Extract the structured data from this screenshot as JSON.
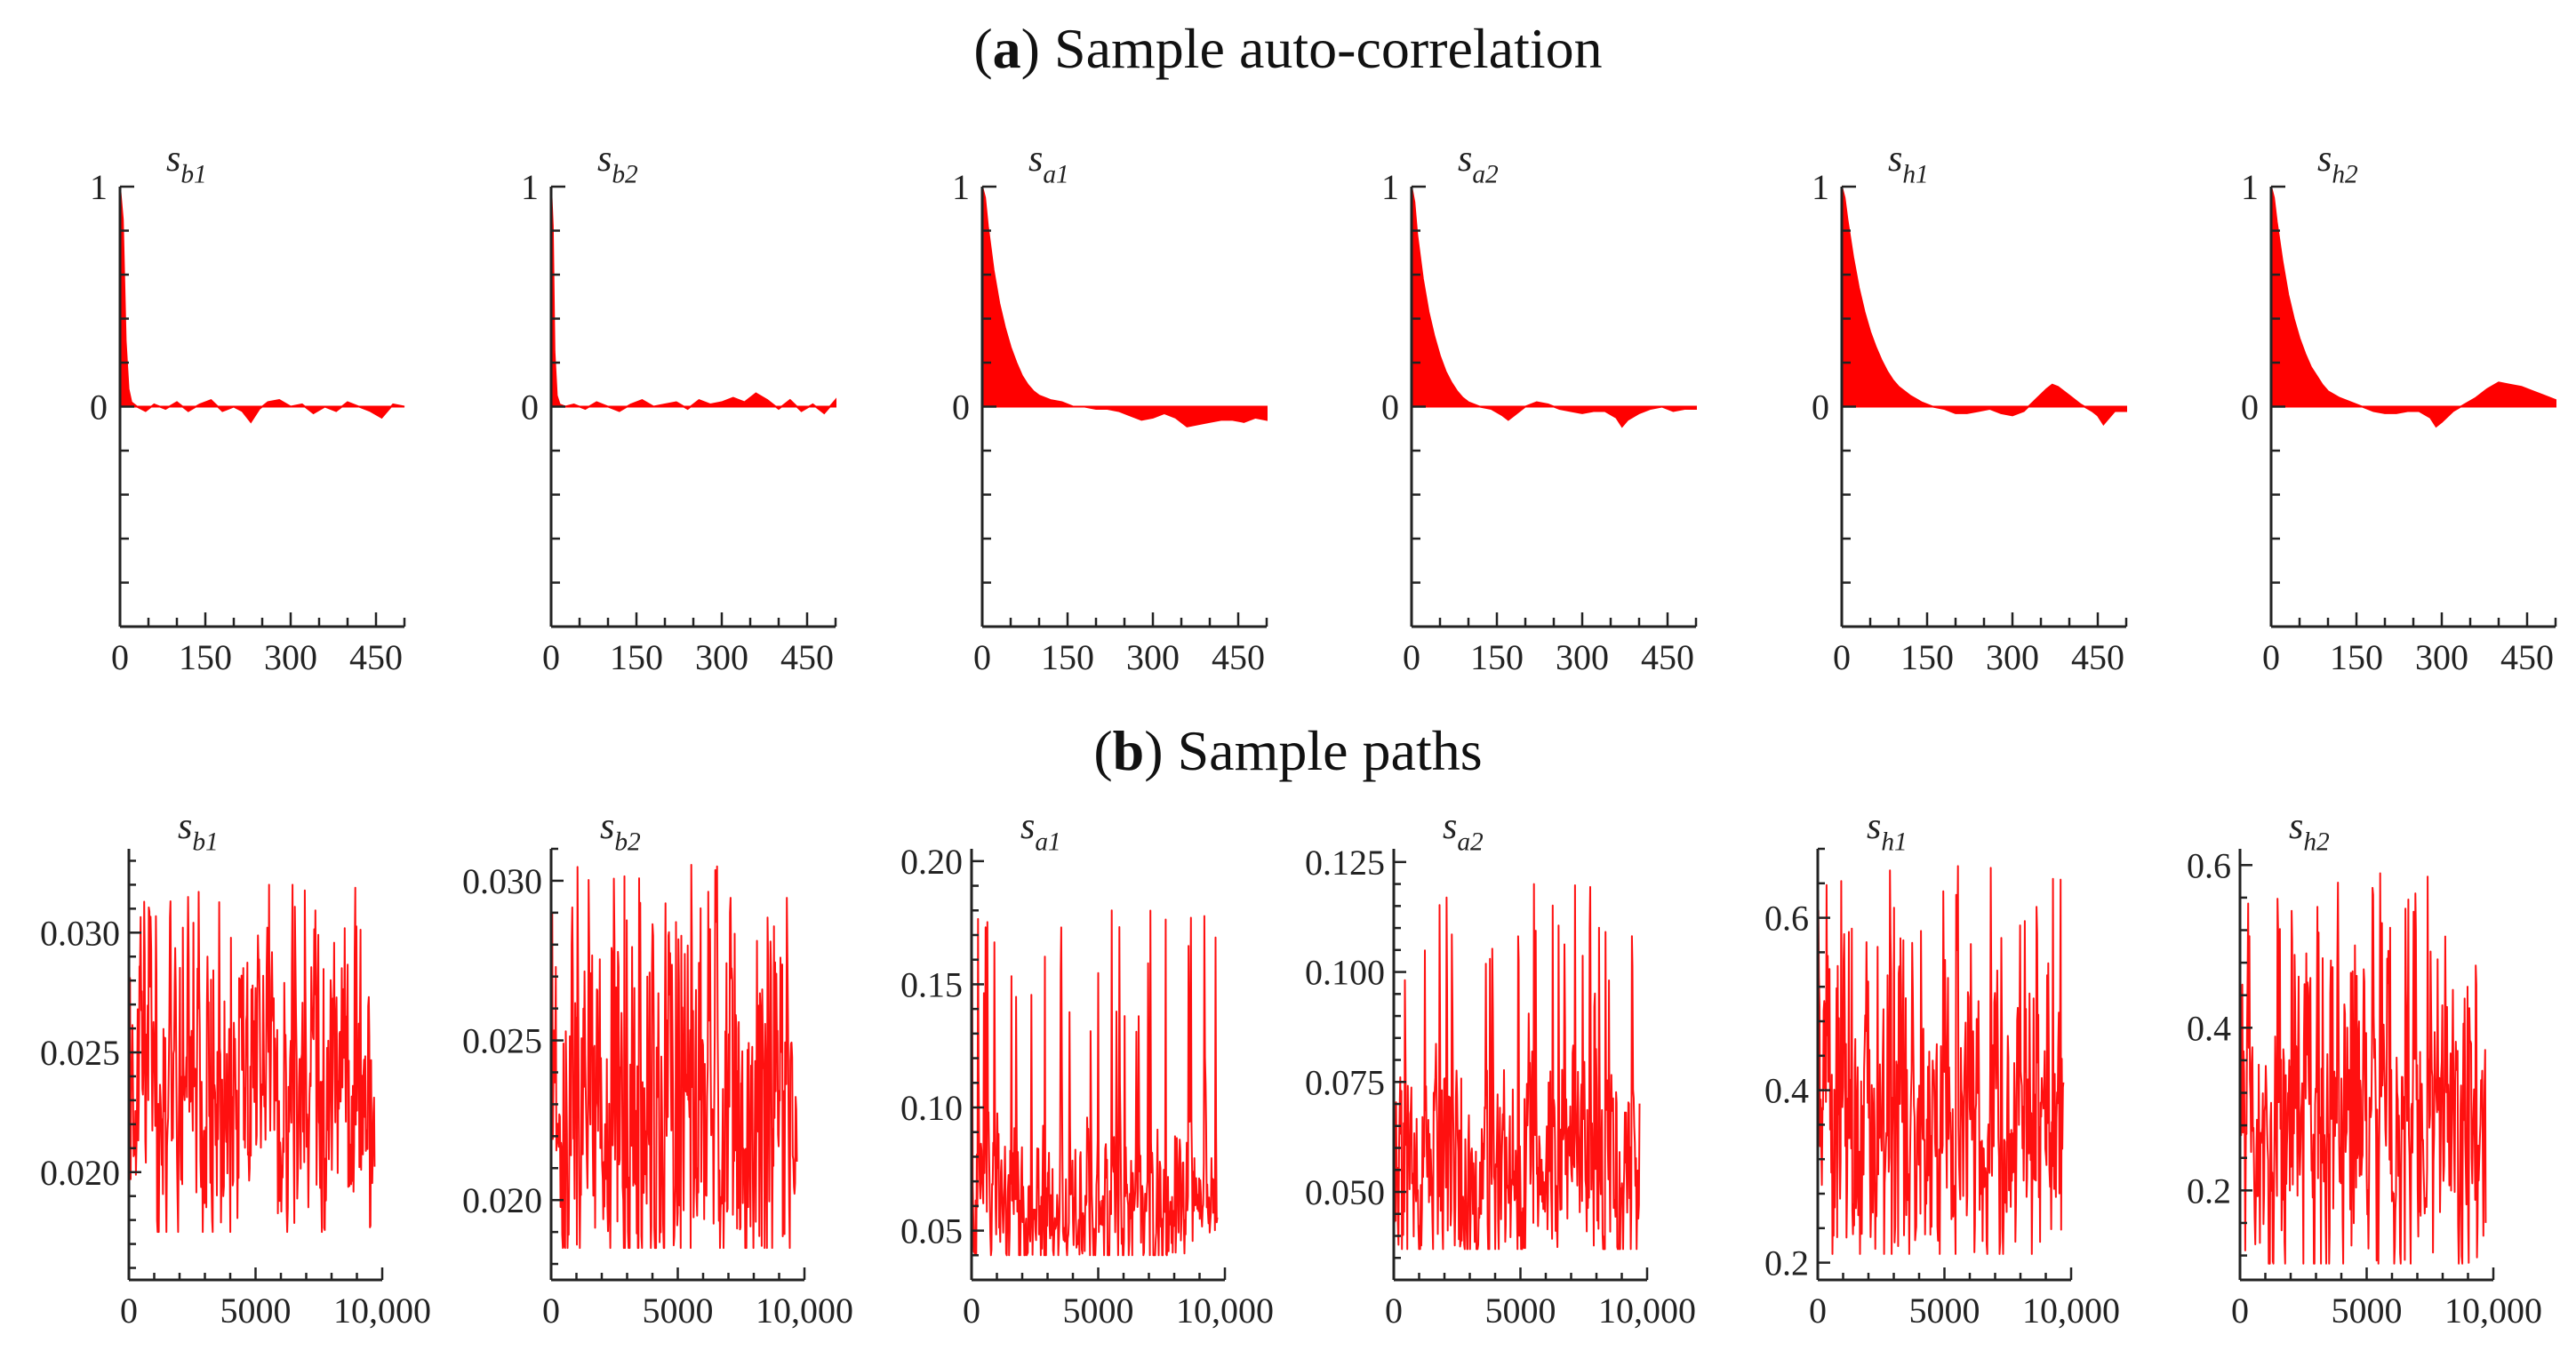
{
  "titles": {
    "a": {
      "letter": "a",
      "text": "Sample auto-correlation"
    },
    "b": {
      "letter": "b",
      "text": "Sample paths"
    }
  },
  "colors": {
    "series": "#ff0000",
    "axis": "#222222"
  },
  "chart_data": [
    {
      "type": "area",
      "group": "a",
      "label_base": "s",
      "label_sub": "b1",
      "xlim": [
        0,
        500
      ],
      "ylim": [
        -1,
        1
      ],
      "xticks": [
        0,
        150,
        300,
        450
      ],
      "ytick_labels": [
        {
          "v": 1,
          "t": "1"
        },
        {
          "v": 0,
          "t": "0"
        }
      ],
      "x": [
        0,
        5,
        10,
        15,
        20,
        30,
        45,
        60,
        80,
        100,
        120,
        140,
        160,
        180,
        200,
        215,
        230,
        245,
        260,
        280,
        300,
        320,
        340,
        360,
        380,
        400,
        420,
        440,
        460,
        480,
        500
      ],
      "y": [
        1.0,
        0.85,
        0.3,
        0.08,
        0.02,
        0.0,
        -0.02,
        0.01,
        -0.01,
        0.02,
        -0.02,
        0.01,
        0.03,
        -0.02,
        0.0,
        -0.02,
        -0.07,
        -0.01,
        0.02,
        0.03,
        0.0,
        0.01,
        -0.03,
        0.0,
        -0.02,
        0.02,
        0.0,
        -0.02,
        -0.05,
        0.01,
        0.0
      ]
    },
    {
      "type": "area",
      "group": "a",
      "label_base": "s",
      "label_sub": "b2",
      "xlim": [
        0,
        500
      ],
      "ylim": [
        -1,
        1
      ],
      "xticks": [
        0,
        150,
        300,
        450
      ],
      "ytick_labels": [
        {
          "v": 1,
          "t": "1"
        },
        {
          "v": 0,
          "t": "0"
        }
      ],
      "x": [
        0,
        3,
        6,
        10,
        15,
        25,
        40,
        60,
        80,
        100,
        120,
        140,
        160,
        180,
        200,
        220,
        240,
        260,
        280,
        300,
        320,
        340,
        360,
        380,
        400,
        420,
        440,
        460,
        480,
        500
      ],
      "y": [
        1.0,
        0.82,
        0.25,
        0.05,
        0.01,
        0.0,
        0.01,
        -0.01,
        0.02,
        0.0,
        -0.02,
        0.01,
        0.03,
        0.0,
        0.01,
        0.02,
        -0.01,
        0.03,
        0.01,
        0.02,
        0.04,
        0.02,
        0.06,
        0.03,
        -0.01,
        0.03,
        -0.02,
        0.01,
        -0.03,
        0.03
      ]
    },
    {
      "type": "area",
      "group": "a",
      "label_base": "s",
      "label_sub": "a1",
      "xlim": [
        0,
        500
      ],
      "ylim": [
        -1,
        1
      ],
      "xticks": [
        0,
        150,
        300,
        450
      ],
      "ytick_labels": [
        {
          "v": 1,
          "t": "1"
        },
        {
          "v": 0,
          "t": "0"
        }
      ],
      "x": [
        0,
        5,
        10,
        20,
        30,
        40,
        50,
        60,
        70,
        80,
        90,
        100,
        120,
        140,
        160,
        180,
        200,
        220,
        240,
        260,
        280,
        300,
        320,
        340,
        360,
        380,
        400,
        420,
        440,
        460,
        480,
        500
      ],
      "y": [
        1.0,
        0.95,
        0.82,
        0.62,
        0.47,
        0.36,
        0.27,
        0.2,
        0.14,
        0.1,
        0.07,
        0.05,
        0.03,
        0.02,
        0.0,
        0.0,
        -0.01,
        -0.01,
        -0.02,
        -0.04,
        -0.06,
        -0.05,
        -0.03,
        -0.05,
        -0.09,
        -0.08,
        -0.07,
        -0.06,
        -0.06,
        -0.07,
        -0.05,
        -0.06
      ]
    },
    {
      "type": "area",
      "group": "a",
      "label_base": "s",
      "label_sub": "a2",
      "xlim": [
        0,
        500
      ],
      "ylim": [
        -1,
        1
      ],
      "xticks": [
        0,
        150,
        300,
        450
      ],
      "ytick_labels": [
        {
          "v": 1,
          "t": "1"
        },
        {
          "v": 0,
          "t": "0"
        }
      ],
      "x": [
        0,
        5,
        10,
        20,
        30,
        40,
        50,
        60,
        70,
        80,
        90,
        100,
        120,
        140,
        160,
        170,
        180,
        200,
        220,
        240,
        260,
        280,
        300,
        320,
        340,
        360,
        370,
        380,
        400,
        420,
        440,
        460,
        480,
        500
      ],
      "y": [
        1.0,
        0.93,
        0.78,
        0.58,
        0.43,
        0.32,
        0.23,
        0.16,
        0.11,
        0.07,
        0.04,
        0.02,
        0.0,
        -0.01,
        -0.04,
        -0.06,
        -0.04,
        0.0,
        0.02,
        0.01,
        -0.01,
        -0.02,
        -0.03,
        -0.02,
        -0.02,
        -0.05,
        -0.09,
        -0.06,
        -0.03,
        -0.01,
        0.0,
        -0.02,
        -0.01,
        -0.01
      ]
    },
    {
      "type": "area",
      "group": "a",
      "label_base": "s",
      "label_sub": "h1",
      "xlim": [
        0,
        500
      ],
      "ylim": [
        -1,
        1
      ],
      "xticks": [
        0,
        150,
        300,
        450
      ],
      "ytick_labels": [
        {
          "v": 1,
          "t": "1"
        },
        {
          "v": 0,
          "t": "0"
        }
      ],
      "x": [
        0,
        5,
        10,
        20,
        30,
        40,
        50,
        60,
        70,
        80,
        90,
        100,
        120,
        140,
        160,
        180,
        200,
        220,
        240,
        260,
        280,
        300,
        320,
        340,
        360,
        370,
        380,
        400,
        420,
        440,
        450,
        460,
        470,
        480,
        500
      ],
      "y": [
        1.0,
        0.95,
        0.85,
        0.68,
        0.54,
        0.43,
        0.34,
        0.27,
        0.21,
        0.16,
        0.12,
        0.09,
        0.05,
        0.02,
        0.0,
        -0.01,
        -0.03,
        -0.03,
        -0.02,
        -0.01,
        -0.03,
        -0.04,
        -0.02,
        0.03,
        0.08,
        0.1,
        0.09,
        0.05,
        0.01,
        -0.02,
        -0.04,
        -0.08,
        -0.05,
        -0.02,
        -0.02
      ]
    },
    {
      "type": "area",
      "group": "a",
      "label_base": "s",
      "label_sub": "h2",
      "xlim": [
        0,
        500
      ],
      "ylim": [
        -1,
        1
      ],
      "xticks": [
        0,
        150,
        300,
        450
      ],
      "ytick_labels": [
        {
          "v": 1,
          "t": "1"
        },
        {
          "v": 0,
          "t": "0"
        }
      ],
      "x": [
        0,
        5,
        10,
        20,
        30,
        40,
        50,
        60,
        70,
        80,
        90,
        100,
        120,
        140,
        160,
        180,
        200,
        220,
        240,
        260,
        280,
        290,
        300,
        320,
        340,
        360,
        380,
        400,
        420,
        440,
        460,
        480,
        500
      ],
      "y": [
        1.0,
        0.95,
        0.84,
        0.66,
        0.51,
        0.4,
        0.31,
        0.24,
        0.18,
        0.14,
        0.1,
        0.07,
        0.04,
        0.02,
        0.0,
        -0.02,
        -0.03,
        -0.03,
        -0.02,
        -0.02,
        -0.05,
        -0.09,
        -0.07,
        -0.02,
        0.01,
        0.04,
        0.08,
        0.11,
        0.1,
        0.09,
        0.07,
        0.05,
        0.03
      ]
    },
    {
      "type": "line",
      "group": "b",
      "label_base": "s",
      "label_sub": "b1",
      "xlim": [
        0,
        10000
      ],
      "ylim": [
        0.0155,
        0.0335
      ],
      "xticks": [
        0,
        5000,
        10000
      ],
      "xtick_labels": [
        "0",
        "5000",
        "10,000"
      ],
      "yticks": [
        0.02,
        0.025,
        0.03
      ],
      "ytick_labels": [
        "0.020",
        "0.025",
        "0.030"
      ],
      "y_min": 0.0175,
      "y_max": 0.032,
      "y_center": 0.0235,
      "y_spread": 0.0018
    },
    {
      "type": "line",
      "group": "b",
      "label_base": "s",
      "label_sub": "b2",
      "xlim": [
        0,
        10000
      ],
      "ylim": [
        0.0175,
        0.031
      ],
      "xticks": [
        0,
        5000,
        10000
      ],
      "xtick_labels": [
        "0",
        "5000",
        "10,000"
      ],
      "yticks": [
        0.02,
        0.025,
        0.03
      ],
      "ytick_labels": [
        "0.020",
        "0.025",
        "0.030"
      ],
      "y_min": 0.0185,
      "y_max": 0.0305,
      "y_center": 0.0225,
      "y_spread": 0.0018
    },
    {
      "type": "line",
      "group": "b",
      "label_base": "s",
      "label_sub": "a1",
      "xlim": [
        0,
        10000
      ],
      "ylim": [
        0.03,
        0.205
      ],
      "xticks": [
        0,
        5000,
        10000
      ],
      "xtick_labels": [
        "0",
        "5000",
        "10,000"
      ],
      "yticks": [
        0.05,
        0.1,
        0.15,
        0.2
      ],
      "ytick_labels": [
        "0.05",
        "0.10",
        "0.15",
        "0.20"
      ],
      "y_min": 0.04,
      "y_max": 0.18,
      "y_center": 0.06,
      "y_spread": 0.009
    },
    {
      "type": "line",
      "group": "b",
      "label_base": "s",
      "label_sub": "a2",
      "xlim": [
        0,
        10000
      ],
      "ylim": [
        0.03,
        0.128
      ],
      "xticks": [
        0,
        5000,
        10000
      ],
      "xtick_labels": [
        "0",
        "5000",
        "10,000"
      ],
      "yticks": [
        0.05,
        0.075,
        0.1,
        0.125
      ],
      "ytick_labels": [
        "0.050",
        "0.075",
        "0.100",
        "0.125"
      ],
      "y_min": 0.037,
      "y_max": 0.12,
      "y_center": 0.055,
      "y_spread": 0.007
    },
    {
      "type": "line",
      "group": "b",
      "label_base": "s",
      "label_sub": "h1",
      "xlim": [
        0,
        10000
      ],
      "ylim": [
        0.18,
        0.68
      ],
      "xticks": [
        0,
        5000,
        10000
      ],
      "xtick_labels": [
        "0",
        "5000",
        "10,000"
      ],
      "yticks": [
        0.2,
        0.4,
        0.6
      ],
      "ytick_labels": [
        "0.2",
        "0.4",
        "0.6"
      ],
      "y_min": 0.21,
      "y_max": 0.66,
      "y_center": 0.36,
      "y_spread": 0.05
    },
    {
      "type": "line",
      "group": "b",
      "label_base": "s",
      "label_sub": "h2",
      "xlim": [
        0,
        10000
      ],
      "ylim": [
        0.09,
        0.62
      ],
      "xticks": [
        0,
        5000,
        10000
      ],
      "xtick_labels": [
        "0",
        "5000",
        "10,000"
      ],
      "yticks": [
        0.2,
        0.4,
        0.6
      ],
      "ytick_labels": [
        "0.2",
        "0.4",
        "0.6"
      ],
      "y_min": 0.11,
      "y_max": 0.59,
      "y_center": 0.3,
      "y_spread": 0.06
    }
  ]
}
